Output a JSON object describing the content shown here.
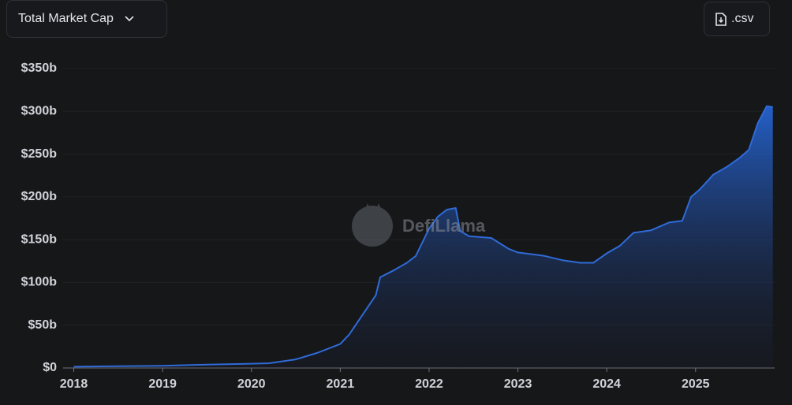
{
  "dropdown_label": "Total Market Cap",
  "button_label": ".csv",
  "watermark": "DefiLlama",
  "chart_data": {
    "type": "area",
    "color": "#2f6bd8",
    "x": [
      2018.0,
      2018.5,
      2019.0,
      2019.5,
      2020.0,
      2020.2,
      2020.3,
      2020.5,
      2020.75,
      2021.0,
      2021.1,
      2021.25,
      2021.4,
      2021.45,
      2021.6,
      2021.75,
      2021.85,
      2022.0,
      2022.1,
      2022.2,
      2022.3,
      2022.35,
      2022.45,
      2022.7,
      2022.9,
      2023.0,
      2023.3,
      2023.5,
      2023.7,
      2023.85,
      2024.0,
      2024.15,
      2024.3,
      2024.5,
      2024.7,
      2024.85,
      2024.95,
      2025.05,
      2025.2,
      2025.35,
      2025.5,
      2025.6,
      2025.7,
      2025.8,
      2025.87
    ],
    "values": [
      1.5,
      2,
      2.5,
      4,
      5,
      5.5,
      7,
      10,
      18,
      28,
      39,
      62,
      85,
      106,
      114,
      123,
      131,
      163,
      177,
      185,
      187,
      160,
      154,
      152,
      139,
      135,
      131,
      126,
      123,
      123,
      134,
      143,
      158,
      161,
      170,
      172,
      200,
      209,
      226,
      235,
      246,
      255,
      286,
      306,
      305
    ],
    "xlim": [
      2017.88,
      2025.89
    ],
    "xticks": [
      2018,
      2019,
      2020,
      2021,
      2022,
      2023,
      2024,
      2025
    ],
    "ylim": [
      0,
      350
    ],
    "yticks": [
      {
        "value": 0,
        "label": "$0"
      },
      {
        "value": 50,
        "label": "$50b"
      },
      {
        "value": 100,
        "label": "$100b"
      },
      {
        "value": 150,
        "label": "$150b"
      },
      {
        "value": 200,
        "label": "$200b"
      },
      {
        "value": 250,
        "label": "$250b"
      },
      {
        "value": 300,
        "label": "$300b"
      },
      {
        "value": 350,
        "label": "$350b"
      }
    ],
    "grid": true
  }
}
